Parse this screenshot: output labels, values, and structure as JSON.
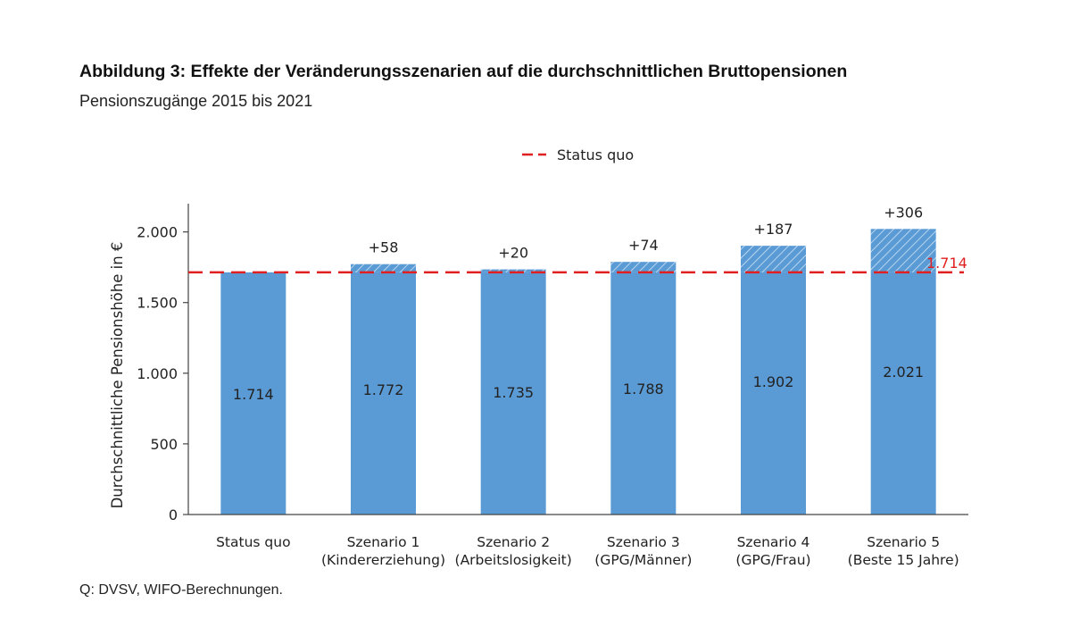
{
  "figure": {
    "title": "Abbildung 3: Effekte der Veränderungsszenarien auf die durchschnittlichen Bruttopensionen",
    "subtitle": "Pensionszugänge 2015 bis 2021",
    "source": "Q: DVSV, WIFO-Berechnungen."
  },
  "chart_data": {
    "type": "bar",
    "ylabel": "Durchschnittliche Pensionshöhe in €",
    "xlabel": "",
    "ylim": [
      0,
      2200
    ],
    "yticks": [
      0,
      500,
      1000,
      1500,
      2000
    ],
    "ytick_labels": [
      "0",
      "500",
      "1.000",
      "1.500",
      "2.000"
    ],
    "categories": [
      [
        "Status quo"
      ],
      [
        "Szenario 1",
        "(Kindererziehung)"
      ],
      [
        "Szenario 2",
        "(Arbeitslosigkeit)"
      ],
      [
        "Szenario 3",
        "(GPG/Männer)"
      ],
      [
        "Szenario 4",
        "(GPG/Frau)"
      ],
      [
        "Szenario 5",
        "(Beste 15 Jahre)"
      ]
    ],
    "values": [
      1714,
      1772,
      1735,
      1788,
      1902,
      2021
    ],
    "value_labels": [
      "1.714",
      "1.772",
      "1.735",
      "1.788",
      "1.902",
      "2.021"
    ],
    "increase_labels": [
      "",
      "+58",
      "+20",
      "+74",
      "+187",
      "+306"
    ],
    "baseline": 1714,
    "baseline_label": "1.714",
    "legend": {
      "entries": [
        "Status quo"
      ],
      "placement": "top-center"
    },
    "grid": false,
    "colors": {
      "bar": "#5b9bd5",
      "hatch": "#ffffff",
      "baseline": "#e02020",
      "axis": "#444444"
    }
  }
}
